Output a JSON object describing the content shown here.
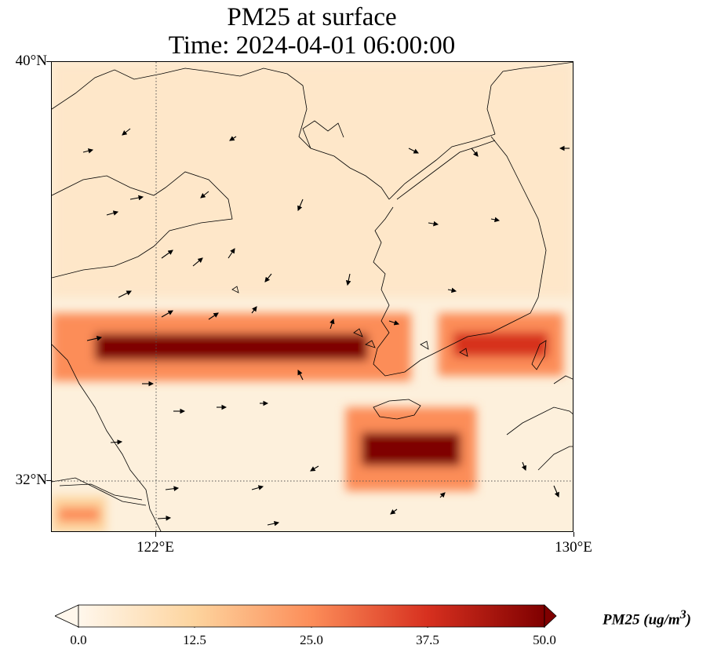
{
  "title": {
    "line1": "PM25 at surface",
    "line2": "Time: 2024-04-01 06:00:00"
  },
  "map": {
    "projection": "PlateCarree",
    "lon_range": [
      120.4,
      130.0
    ],
    "lat_range": [
      31.0,
      40.0
    ],
    "gridlines": {
      "style": "dotted",
      "lons": [
        122,
        130
      ],
      "lats": [
        32,
        40
      ]
    },
    "lat_labels": [
      "40°N",
      "32°N"
    ],
    "lon_labels": [
      "122°E",
      "130°E"
    ],
    "field": "PM25",
    "colormap": "OrRd",
    "colormap_stops": [
      "#fff7ec",
      "#fdd49e",
      "#fc8d59",
      "#d7301f",
      "#7f0000"
    ],
    "plume_bands": [
      {
        "name": "western band",
        "lon": [
          120.4,
          127.0
        ],
        "lat": [
          33.9,
          35.2
        ],
        "peak_ugm3": 50
      },
      {
        "name": "east band",
        "lon": [
          127.5,
          129.8
        ],
        "lat": [
          34.0,
          35.2
        ],
        "peak_ugm3": 40
      },
      {
        "name": "southern patch",
        "lon": [
          125.8,
          128.2
        ],
        "lat": [
          31.8,
          33.4
        ],
        "peak_ugm3": 45
      },
      {
        "name": "southwest corner",
        "lon": [
          120.4,
          121.4
        ],
        "lat": [
          31.0,
          31.7
        ],
        "peak_ugm3": 30
      }
    ],
    "wind_arrows": "present"
  },
  "colorbar": {
    "label_main": "PM25 (ug/m",
    "label_sup": "3",
    "label_close": ")",
    "ticks": [
      "0.0",
      "12.5",
      "25.0",
      "37.5",
      "50.0"
    ],
    "range": [
      0.0,
      50.0
    ],
    "extend": "both"
  }
}
